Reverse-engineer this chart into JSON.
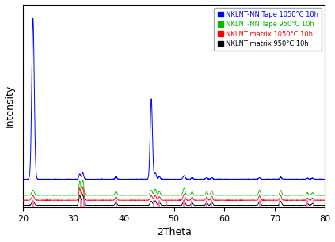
{
  "title": "",
  "xlabel": "2Theta",
  "ylabel": "Intensity",
  "xlim": [
    20,
    80
  ],
  "background_color": "#ffffff",
  "legend_entries": [
    {
      "label": "NKLNT-NN Tape 1050°C 10h",
      "color": "#0000ff"
    },
    {
      "label": "NKLNT-NN Tape 950°C 10h",
      "color": "#00bb00"
    },
    {
      "label": "NKLNT matrix 1050°C 10h",
      "color": "#ff0000"
    },
    {
      "label": "NKLNT matrix 950°C 10h",
      "color": "#000000"
    }
  ],
  "xticks": [
    20,
    30,
    40,
    50,
    60,
    70,
    80
  ],
  "colors": [
    "#0000ff",
    "#00bb00",
    "#ff0000",
    "#000000"
  ],
  "common_peaks": [
    22.0,
    31.3,
    31.9,
    38.5,
    45.5,
    46.3,
    47.1,
    52.0,
    53.6,
    56.5,
    57.5,
    67.0,
    71.2,
    76.5,
    77.5
  ],
  "common_widths": [
    0.25,
    0.18,
    0.18,
    0.18,
    0.22,
    0.2,
    0.18,
    0.2,
    0.18,
    0.18,
    0.18,
    0.18,
    0.18,
    0.18,
    0.18
  ],
  "blue_heights": [
    3.2,
    0.1,
    0.12,
    0.05,
    1.6,
    0.12,
    0.05,
    0.07,
    0.03,
    0.03,
    0.03,
    0.03,
    0.04,
    0.02,
    0.02
  ],
  "green_heights": [
    0.1,
    0.28,
    0.3,
    0.08,
    0.1,
    0.12,
    0.08,
    0.14,
    0.07,
    0.07,
    0.09,
    0.1,
    0.1,
    0.05,
    0.05
  ],
  "red_heights": [
    0.09,
    0.24,
    0.26,
    0.07,
    0.09,
    0.1,
    0.07,
    0.12,
    0.06,
    0.06,
    0.08,
    0.09,
    0.09,
    0.04,
    0.04
  ],
  "black_heights": [
    0.08,
    0.2,
    0.22,
    0.06,
    0.08,
    0.09,
    0.06,
    0.1,
    0.05,
    0.05,
    0.07,
    0.08,
    0.08,
    0.035,
    0.035
  ],
  "noise_blue": 0.003,
  "noise_other": 0.002,
  "off_blue": 0.52,
  "off_green": 0.2,
  "off_red": 0.1,
  "off_black": 0.0,
  "ylim": [
    -0.04,
    4.0
  ],
  "ref_tick_positions": [
    22.0,
    31.5,
    32.1,
    38.5,
    46.0,
    47.0,
    48.5,
    52.0,
    53.5,
    56.5,
    57.5,
    67.0,
    71.0,
    76.5,
    77.8
  ],
  "ref_tick_color": "#ff69b4",
  "figsize": [
    4.23,
    3.06
  ],
  "dpi": 100
}
